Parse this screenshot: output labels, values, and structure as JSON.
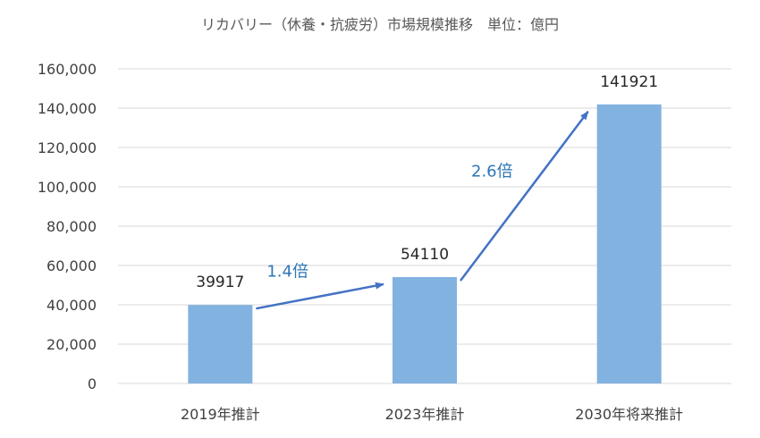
{
  "chart_data": {
    "type": "bar",
    "title": "リカバリー（休養・抗疲労）市場規模推移　単位：億円",
    "xlabel": "",
    "ylabel": "",
    "categories": [
      "2019年推計",
      "2023年推計",
      "2030年将来推計"
    ],
    "values": [
      39917,
      54110,
      141921
    ],
    "data_labels": [
      "39917",
      "54110",
      "141921"
    ],
    "ylim": [
      0,
      160000
    ],
    "yticks": [
      0,
      20000,
      40000,
      60000,
      80000,
      100000,
      120000,
      140000,
      160000
    ],
    "ytick_labels": [
      "0",
      "20,000",
      "40,000",
      "60,000",
      "80,000",
      "100,000",
      "120,000",
      "140,000",
      "160,000"
    ],
    "grid": true,
    "legend": "none",
    "bar_color": "#82B2E0",
    "annotations": [
      {
        "text": "1.4倍",
        "from": 0,
        "to": 1
      },
      {
        "text": "2.6倍",
        "from": 1,
        "to": 2
      }
    ],
    "arrow_color": "#4472C4",
    "annotation_color": "#2E75B6",
    "grid_color": "#D9D9D9"
  }
}
